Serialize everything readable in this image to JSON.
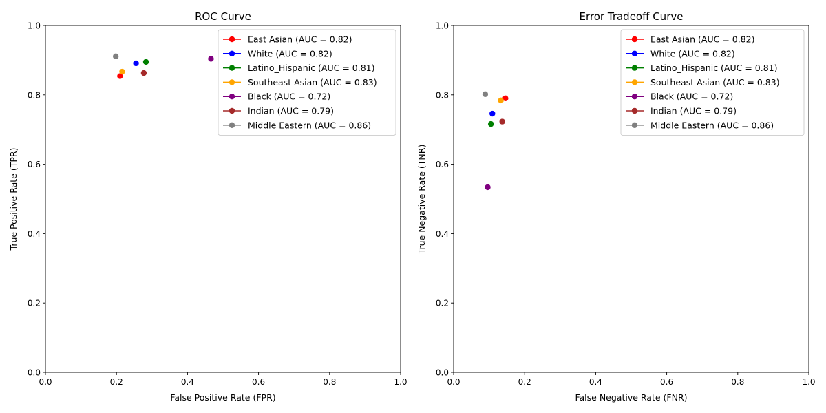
{
  "chart_data": [
    {
      "type": "scatter",
      "title": "ROC Curve",
      "xlabel": "False Positive Rate (FPR)",
      "ylabel": "True Positive Rate (TPR)",
      "xlim": [
        0.0,
        1.0
      ],
      "ylim": [
        0.0,
        1.0
      ],
      "xticks": [
        "0.0",
        "0.2",
        "0.4",
        "0.6",
        "0.8",
        "1.0"
      ],
      "yticks": [
        "0.0",
        "0.2",
        "0.4",
        "0.6",
        "0.8",
        "1.0"
      ],
      "grid": false,
      "legend_position": "top-right",
      "series": [
        {
          "name": "East Asian (AUC = 0.82)",
          "color": "#ff0000",
          "x": [
            0.21
          ],
          "y": [
            0.854
          ]
        },
        {
          "name": "White (AUC = 0.82)",
          "color": "#0000ff",
          "x": [
            0.255
          ],
          "y": [
            0.891
          ]
        },
        {
          "name": "Latino_Hispanic (AUC = 0.81)",
          "color": "#008000",
          "x": [
            0.283
          ],
          "y": [
            0.895
          ]
        },
        {
          "name": "Southeast Asian (AUC = 0.83)",
          "color": "#ffa500",
          "x": [
            0.216
          ],
          "y": [
            0.867
          ]
        },
        {
          "name": "Black (AUC = 0.72)",
          "color": "#800080",
          "x": [
            0.466
          ],
          "y": [
            0.904
          ]
        },
        {
          "name": "Indian (AUC = 0.79)",
          "color": "#a52a2a",
          "x": [
            0.277
          ],
          "y": [
            0.863
          ]
        },
        {
          "name": "Middle Eastern (AUC = 0.86)",
          "color": "#808080",
          "x": [
            0.198
          ],
          "y": [
            0.911
          ]
        }
      ]
    },
    {
      "type": "scatter",
      "title": "Error Tradeoff Curve",
      "xlabel": "False Negative Rate (FNR)",
      "ylabel": "True Negative Rate (TNR)",
      "xlim": [
        0.0,
        1.0
      ],
      "ylim": [
        0.0,
        1.0
      ],
      "xticks": [
        "0.0",
        "0.2",
        "0.4",
        "0.6",
        "0.8",
        "1.0"
      ],
      "yticks": [
        "0.0",
        "0.2",
        "0.4",
        "0.6",
        "0.8",
        "1.0"
      ],
      "grid": false,
      "legend_position": "top-right",
      "series": [
        {
          "name": "East Asian (AUC = 0.82)",
          "color": "#ff0000",
          "x": [
            0.146
          ],
          "y": [
            0.79
          ]
        },
        {
          "name": "White (AUC = 0.82)",
          "color": "#0000ff",
          "x": [
            0.109
          ],
          "y": [
            0.746
          ]
        },
        {
          "name": "Latino_Hispanic (AUC = 0.81)",
          "color": "#008000",
          "x": [
            0.105
          ],
          "y": [
            0.716
          ]
        },
        {
          "name": "Southeast Asian (AUC = 0.83)",
          "color": "#ffa500",
          "x": [
            0.133
          ],
          "y": [
            0.784
          ]
        },
        {
          "name": "Black (AUC = 0.72)",
          "color": "#800080",
          "x": [
            0.096
          ],
          "y": [
            0.534
          ]
        },
        {
          "name": "Indian (AUC = 0.79)",
          "color": "#a52a2a",
          "x": [
            0.137
          ],
          "y": [
            0.723
          ]
        },
        {
          "name": "Middle Eastern (AUC = 0.86)",
          "color": "#808080",
          "x": [
            0.089
          ],
          "y": [
            0.802
          ]
        }
      ]
    }
  ]
}
